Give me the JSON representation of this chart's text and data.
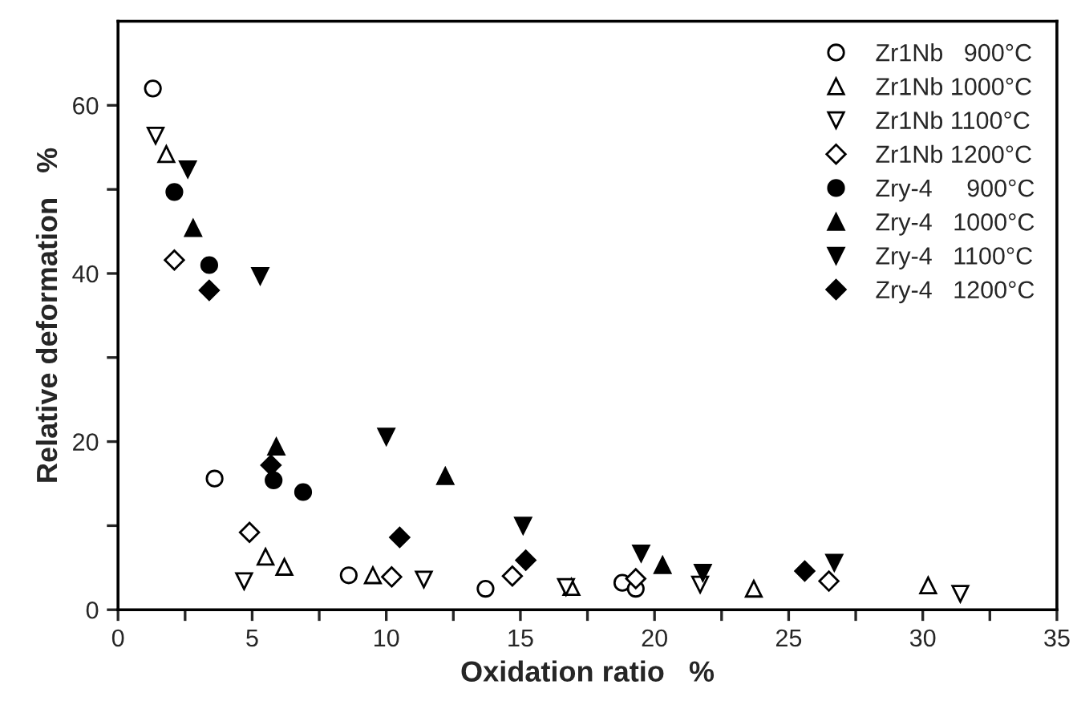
{
  "chart_data": {
    "type": "scatter",
    "xlabel": "Oxidation ratio   %",
    "ylabel": "Relative deformation   %",
    "xlim": [
      0,
      35
    ],
    "ylim": [
      0,
      70
    ],
    "xticks": [
      0,
      {
        "value": 2.5,
        "label": null
      },
      5,
      {
        "value": 7.5,
        "label": null
      },
      10,
      {
        "value": 12.5,
        "label": null
      },
      15,
      {
        "value": 17.5,
        "label": null
      },
      20,
      {
        "value": 22.5,
        "label": null
      },
      25,
      {
        "value": 27.5,
        "label": null
      },
      30,
      {
        "value": 32.5,
        "label": null
      },
      35
    ],
    "yticks": [
      0,
      {
        "value": 10,
        "label": null
      },
      20,
      {
        "value": 30,
        "label": null
      },
      40,
      {
        "value": 50,
        "label": null
      },
      60
    ],
    "grid": false,
    "legend": "top right",
    "series": [
      {
        "name": "Zr1Nb   900°C",
        "color": "#ffffff",
        "marker": "circle",
        "x": [
          1.3,
          3.6,
          8.6,
          13.7,
          18.8,
          19.3
        ],
        "values": [
          62,
          15.6,
          4.1,
          2.5,
          3.2,
          2.5
        ]
      },
      {
        "name": "Zr1Nb 1000°C",
        "color": "#ffffff",
        "marker": "triangle",
        "x": [
          1.8,
          5.5,
          6.2,
          9.5,
          16.9,
          23.7,
          30.2
        ],
        "values": [
          54.2,
          6.3,
          5.1,
          4.1,
          2.7,
          2.5,
          2.9
        ]
      },
      {
        "name": "Zr1Nb 1100°C",
        "color": "#ffffff",
        "marker": "triangle_down",
        "x": [
          1.4,
          4.7,
          11.4,
          16.7,
          21.7,
          31.4
        ],
        "values": [
          56.4,
          3.4,
          3.6,
          2.7,
          3.0,
          1.9
        ]
      },
      {
        "name": "Zr1Nb 1200°C",
        "color": "#ffffff",
        "marker": "diamond",
        "x": [
          2.1,
          4.9,
          10.2,
          14.7,
          19.3,
          26.5
        ],
        "values": [
          41.6,
          9.2,
          3.9,
          4.0,
          3.7,
          3.4
        ]
      },
      {
        "name": "Zry-4     900°C",
        "color": "#000000",
        "marker": "circle",
        "x": [
          2.1,
          3.4,
          5.8,
          6.9
        ],
        "values": [
          49.7,
          41.0,
          15.4,
          14.0
        ]
      },
      {
        "name": "Zry-4   1000°C",
        "color": "#000000",
        "marker": "triangle",
        "x": [
          2.8,
          5.9,
          12.2,
          20.3
        ],
        "values": [
          45.4,
          19.4,
          15.9,
          5.3
        ]
      },
      {
        "name": "Zry-4   1100°C",
        "color": "#000000",
        "marker": "triangle_down",
        "x": [
          2.6,
          5.3,
          10.0,
          15.1,
          19.5,
          21.8,
          26.7
        ],
        "values": [
          52.4,
          39.7,
          20.6,
          10.0,
          6.7,
          4.4,
          5.6
        ]
      },
      {
        "name": "Zry-4   1200°C",
        "color": "#000000",
        "marker": "diamond",
        "x": [
          3.4,
          5.7,
          10.5,
          15.2,
          25.6
        ],
        "values": [
          38.0,
          17.2,
          8.6,
          5.9,
          4.6
        ]
      }
    ]
  }
}
